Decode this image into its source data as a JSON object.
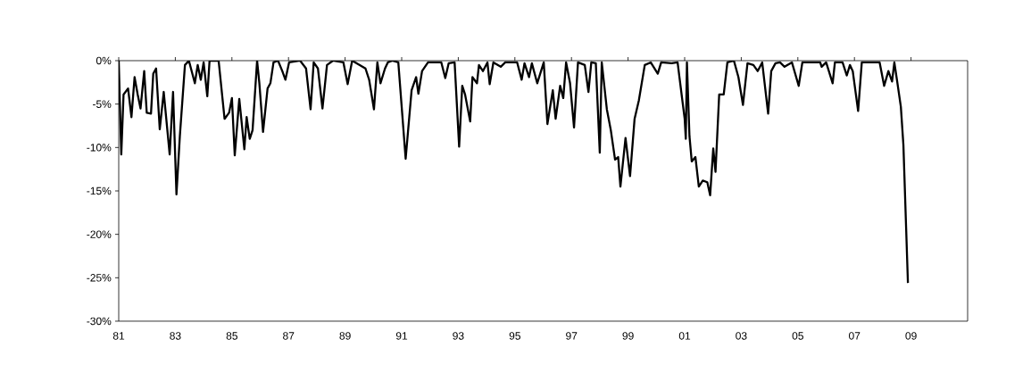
{
  "chart_data": {
    "type": "line",
    "color": "#000000",
    "line_style": "solid",
    "marker": "none",
    "x": [
      1981.0,
      1981.09,
      1981.17,
      1981.33,
      1981.45,
      1981.56,
      1981.67,
      1981.77,
      1981.9,
      1981.99,
      1982.14,
      1982.22,
      1982.32,
      1982.45,
      1982.59,
      1982.8,
      1982.92,
      1983.04,
      1983.16,
      1983.34,
      1983.48,
      1983.69,
      1983.79,
      1983.9,
      1984.0,
      1984.13,
      1984.21,
      1984.53,
      1984.74,
      1984.9,
      1985.0,
      1985.1,
      1985.26,
      1985.44,
      1985.52,
      1985.63,
      1985.73,
      1985.89,
      1985.97,
      1986.1,
      1986.26,
      1986.36,
      1986.47,
      1986.63,
      1986.78,
      1986.89,
      1987.02,
      1987.41,
      1987.62,
      1987.78,
      1987.89,
      1988.04,
      1988.2,
      1988.36,
      1988.57,
      1988.94,
      1989.09,
      1989.25,
      1989.72,
      1989.85,
      1990.02,
      1990.14,
      1990.25,
      1990.41,
      1990.51,
      1990.67,
      1990.88,
      1991.14,
      1991.35,
      1991.51,
      1991.59,
      1991.72,
      1991.93,
      1992.4,
      1992.54,
      1992.66,
      1992.87,
      1993.03,
      1993.14,
      1993.24,
      1993.42,
      1993.5,
      1993.66,
      1993.73,
      1993.87,
      1994.03,
      1994.11,
      1994.24,
      1994.5,
      1994.66,
      1995.08,
      1995.24,
      1995.34,
      1995.5,
      1995.6,
      1995.79,
      1996.02,
      1996.15,
      1996.34,
      1996.44,
      1996.6,
      1996.71,
      1996.81,
      1996.95,
      1997.09,
      1997.23,
      1997.47,
      1997.6,
      1997.7,
      1997.86,
      1998.0,
      1998.07,
      1998.25,
      1998.39,
      1998.54,
      1998.65,
      1998.73,
      1998.91,
      1999.07,
      1999.23,
      1999.38,
      1999.59,
      1999.8,
      2000.05,
      2000.17,
      2000.54,
      2000.75,
      2001.0,
      2001.04,
      2001.08,
      2001.17,
      2001.25,
      2001.38,
      2001.5,
      2001.64,
      2001.8,
      2001.9,
      2002.01,
      2002.09,
      2002.22,
      2002.38,
      2002.51,
      2002.74,
      2002.9,
      2003.06,
      2003.22,
      2003.43,
      2003.58,
      2003.74,
      2003.95,
      2004.06,
      2004.21,
      2004.37,
      2004.53,
      2004.79,
      2005.03,
      2005.16,
      2005.79,
      2005.84,
      2006.0,
      2006.23,
      2006.31,
      2006.58,
      2006.73,
      2006.84,
      2006.94,
      2007.13,
      2007.26,
      2007.89,
      2008.05,
      2008.2,
      2008.33,
      2008.41,
      2008.52,
      2008.64,
      2008.73,
      2008.89
    ],
    "values": [
      0,
      -10.8,
      -3.9,
      -3.2,
      -6.5,
      -1.9,
      -3.9,
      -5.5,
      -1.2,
      -6.0,
      -6.1,
      -1.5,
      -0.9,
      -7.9,
      -3.6,
      -10.8,
      -3.6,
      -15.4,
      -8.7,
      -0.5,
      0,
      -2.6,
      -0.5,
      -2.2,
      -0.2,
      -4.1,
      0,
      0,
      -6.7,
      -6.0,
      -4.3,
      -10.9,
      -4.4,
      -10.2,
      -6.5,
      -9.0,
      -8.0,
      0,
      -2.6,
      -8.2,
      -3.2,
      -2.6,
      -0.2,
      0,
      -1.2,
      -2.2,
      -0.2,
      0,
      -0.9,
      -5.6,
      -0.2,
      -0.9,
      -5.5,
      -0.5,
      0,
      -0.2,
      -2.7,
      0,
      -0.9,
      -2.2,
      -5.6,
      -0.2,
      -2.6,
      -0.9,
      -0.2,
      0,
      -0.2,
      -11.3,
      -3.4,
      -1.9,
      -3.8,
      -1.2,
      -0.2,
      -0.2,
      -2.0,
      -0.3,
      -0.2,
      -9.9,
      -2.9,
      -3.9,
      -7.0,
      -1.9,
      -2.6,
      -0.5,
      -1.2,
      -0.2,
      -2.7,
      -0.2,
      -0.7,
      -0.2,
      -0.2,
      -2.2,
      -0.3,
      -1.9,
      -0.3,
      -2.6,
      -0.2,
      -7.3,
      -3.4,
      -6.7,
      -2.9,
      -4.3,
      -0.2,
      -2.6,
      -7.7,
      -0.2,
      -0.5,
      -3.6,
      -0.2,
      -0.3,
      -10.6,
      -0.2,
      -5.6,
      -8.0,
      -11.4,
      -11.1,
      -14.5,
      -8.9,
      -13.3,
      -6.7,
      -4.6,
      -0.5,
      -0.2,
      -1.5,
      -0.2,
      -0.3,
      -0.2,
      -6.7,
      -9.0,
      -0.2,
      -8.7,
      -11.6,
      -11.1,
      -14.5,
      -13.8,
      -14.0,
      -15.5,
      -10.1,
      -12.8,
      -3.9,
      -3.9,
      -0.2,
      0,
      -1.9,
      -5.1,
      -0.3,
      -0.5,
      -1.2,
      -0.2,
      -6.1,
      -1.2,
      -0.3,
      -0.2,
      -0.7,
      -0.2,
      -2.9,
      -0.2,
      -0.2,
      -0.7,
      -0.2,
      -2.6,
      -0.2,
      -0.2,
      -1.7,
      -0.5,
      -1.2,
      -5.8,
      -0.2,
      -0.2,
      -2.9,
      -1.2,
      -2.4,
      -0.2,
      -2.6,
      -5.3,
      -9.7,
      -25.6
    ],
    "xlim": [
      1981,
      2011
    ],
    "xticks": [
      {
        "value": 1981,
        "label": "81"
      },
      {
        "value": 1983,
        "label": "83"
      },
      {
        "value": 1985,
        "label": "85"
      },
      {
        "value": 1987,
        "label": "87"
      },
      {
        "value": 1989,
        "label": "89"
      },
      {
        "value": 1991,
        "label": "91"
      },
      {
        "value": 1993,
        "label": "93"
      },
      {
        "value": 1995,
        "label": "95"
      },
      {
        "value": 1997,
        "label": "97"
      },
      {
        "value": 1999,
        "label": "99"
      },
      {
        "value": 2001,
        "label": "01"
      },
      {
        "value": 2003,
        "label": "03"
      },
      {
        "value": 2005,
        "label": "05"
      },
      {
        "value": 2007,
        "label": "07"
      },
      {
        "value": 2009,
        "label": "09"
      }
    ],
    "ylim": [
      -30,
      0
    ],
    "yticks": [
      {
        "value": 0,
        "label": "0%"
      },
      {
        "value": -5,
        "label": "-5%"
      },
      {
        "value": -10,
        "label": "-10%"
      },
      {
        "value": -15,
        "label": "-15%"
      },
      {
        "value": -20,
        "label": "-20%"
      },
      {
        "value": -25,
        "label": "-25%"
      },
      {
        "value": -30,
        "label": "-30%"
      }
    ]
  }
}
